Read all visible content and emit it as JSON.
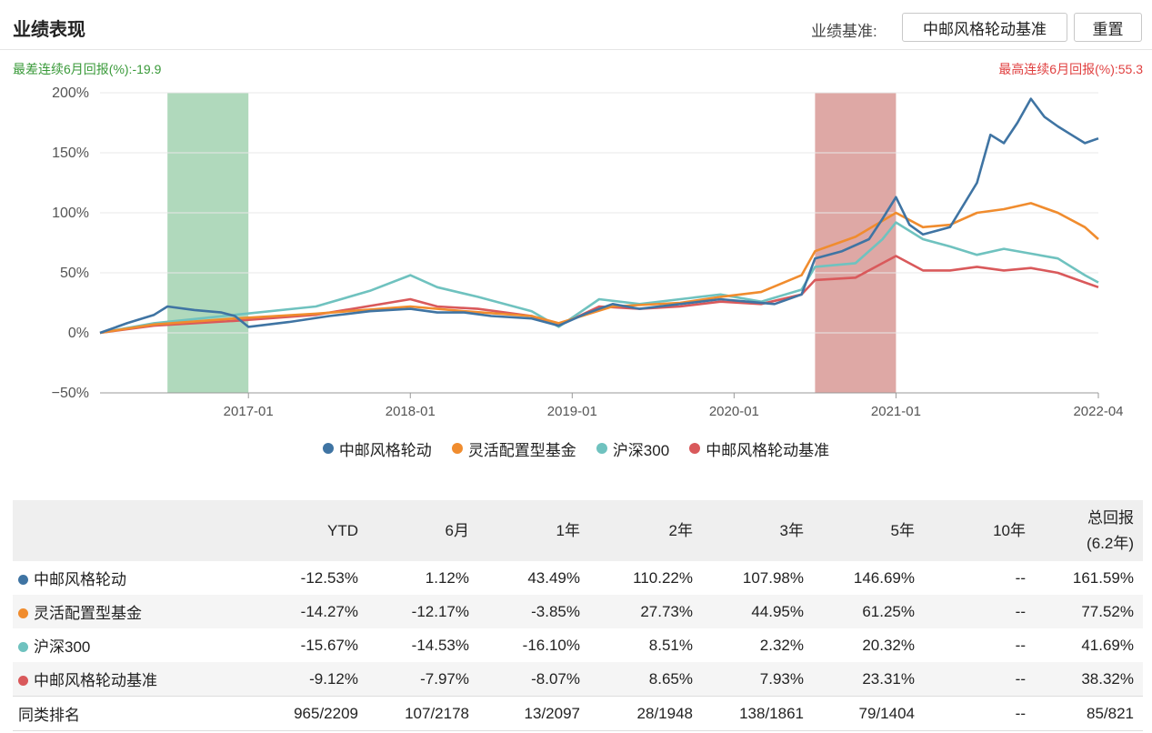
{
  "header": {
    "title": "业绩表现",
    "benchmark_label": "业绩基准:",
    "benchmark_value": "中邮风格轮动基准",
    "reset_label": "重置"
  },
  "annotations": {
    "worst_6m": "最差连续6月回报(%):-19.9",
    "best_6m": "最高连续6月回报(%):55.3"
  },
  "colors": {
    "fund": "#3f74a3",
    "category": "#f08c2e",
    "hs300": "#6fc2bf",
    "benchmark": "#d9595b",
    "worst_band": "#8fc9a0",
    "best_band": "#cc7a74",
    "positive": "#e03030",
    "negative": "#2e9a2e"
  },
  "chart_data": {
    "type": "line",
    "x_ticks": [
      "2017-01",
      "2018-01",
      "2019-01",
      "2020-01",
      "2021-01",
      "2022-04"
    ],
    "y_ticks": [
      "200%",
      "150%",
      "100%",
      "50%",
      "0%",
      "−50%"
    ],
    "ylim": [
      -50,
      200
    ],
    "grid": true,
    "legend_position": "bottom",
    "shaded_periods": [
      {
        "kind": "worst",
        "start": "2016-07",
        "end": "2017-01"
      },
      {
        "kind": "best",
        "start": "2020-07",
        "end": "2021-01"
      }
    ],
    "series": [
      {
        "name": "中邮风格轮动",
        "points": [
          [
            "2016-02",
            0
          ],
          [
            "2016-04",
            8
          ],
          [
            "2016-06",
            15
          ],
          [
            "2016-07",
            22
          ],
          [
            "2016-09",
            19
          ],
          [
            "2016-11",
            17
          ],
          [
            "2016-12",
            14
          ],
          [
            "2017-01",
            5
          ],
          [
            "2017-04",
            9
          ],
          [
            "2017-07",
            14
          ],
          [
            "2017-10",
            18
          ],
          [
            "2018-01",
            20
          ],
          [
            "2018-03",
            17
          ],
          [
            "2018-05",
            17
          ],
          [
            "2018-07",
            14
          ],
          [
            "2018-10",
            12
          ],
          [
            "2018-12",
            6
          ],
          [
            "2019-02",
            16
          ],
          [
            "2019-04",
            24
          ],
          [
            "2019-06",
            20
          ],
          [
            "2019-09",
            24
          ],
          [
            "2019-12",
            28
          ],
          [
            "2020-02",
            26
          ],
          [
            "2020-04",
            24
          ],
          [
            "2020-06",
            32
          ],
          [
            "2020-07",
            62
          ],
          [
            "2020-09",
            68
          ],
          [
            "2020-11",
            78
          ],
          [
            "2020-12",
            95
          ],
          [
            "2021-01",
            113
          ],
          [
            "2021-02",
            90
          ],
          [
            "2021-03",
            82
          ],
          [
            "2021-05",
            88
          ],
          [
            "2021-07",
            125
          ],
          [
            "2021-08",
            165
          ],
          [
            "2021-09",
            158
          ],
          [
            "2021-10",
            175
          ],
          [
            "2021-11",
            195
          ],
          [
            "2021-12",
            180
          ],
          [
            "2022-01",
            172
          ],
          [
            "2022-02",
            165
          ],
          [
            "2022-03",
            158
          ],
          [
            "2022-04",
            162
          ]
        ]
      },
      {
        "name": "灵活配置型基金",
        "points": [
          [
            "2016-02",
            0
          ],
          [
            "2016-06",
            7
          ],
          [
            "2016-12",
            12
          ],
          [
            "2017-06",
            16
          ],
          [
            "2018-01",
            22
          ],
          [
            "2018-05",
            18
          ],
          [
            "2018-10",
            14
          ],
          [
            "2018-12",
            8
          ],
          [
            "2019-04",
            22
          ],
          [
            "2019-09",
            25
          ],
          [
            "2019-12",
            30
          ],
          [
            "2020-03",
            34
          ],
          [
            "2020-06",
            48
          ],
          [
            "2020-07",
            68
          ],
          [
            "2020-10",
            80
          ],
          [
            "2021-01",
            100
          ],
          [
            "2021-03",
            88
          ],
          [
            "2021-05",
            90
          ],
          [
            "2021-07",
            100
          ],
          [
            "2021-09",
            103
          ],
          [
            "2021-11",
            108
          ],
          [
            "2022-01",
            100
          ],
          [
            "2022-03",
            88
          ],
          [
            "2022-04",
            78
          ]
        ]
      },
      {
        "name": "沪深300",
        "points": [
          [
            "2016-02",
            0
          ],
          [
            "2016-06",
            8
          ],
          [
            "2016-12",
            15
          ],
          [
            "2017-06",
            22
          ],
          [
            "2017-10",
            35
          ],
          [
            "2018-01",
            48
          ],
          [
            "2018-03",
            38
          ],
          [
            "2018-06",
            30
          ],
          [
            "2018-10",
            18
          ],
          [
            "2018-12",
            5
          ],
          [
            "2019-03",
            28
          ],
          [
            "2019-06",
            24
          ],
          [
            "2019-09",
            28
          ],
          [
            "2019-12",
            32
          ],
          [
            "2020-03",
            26
          ],
          [
            "2020-06",
            36
          ],
          [
            "2020-07",
            55
          ],
          [
            "2020-10",
            58
          ],
          [
            "2020-12",
            78
          ],
          [
            "2021-01",
            92
          ],
          [
            "2021-03",
            78
          ],
          [
            "2021-05",
            72
          ],
          [
            "2021-07",
            65
          ],
          [
            "2021-09",
            70
          ],
          [
            "2021-11",
            66
          ],
          [
            "2022-01",
            62
          ],
          [
            "2022-03",
            48
          ],
          [
            "2022-04",
            42
          ]
        ]
      },
      {
        "name": "中邮风格轮动基准",
        "points": [
          [
            "2016-02",
            0
          ],
          [
            "2016-06",
            6
          ],
          [
            "2016-12",
            10
          ],
          [
            "2017-06",
            15
          ],
          [
            "2018-01",
            28
          ],
          [
            "2018-03",
            22
          ],
          [
            "2018-06",
            20
          ],
          [
            "2018-10",
            14
          ],
          [
            "2018-12",
            6
          ],
          [
            "2019-03",
            22
          ],
          [
            "2019-06",
            20
          ],
          [
            "2019-09",
            22
          ],
          [
            "2019-12",
            26
          ],
          [
            "2020-03",
            24
          ],
          [
            "2020-06",
            32
          ],
          [
            "2020-07",
            44
          ],
          [
            "2020-10",
            46
          ],
          [
            "2020-12",
            58
          ],
          [
            "2021-01",
            64
          ],
          [
            "2021-03",
            52
          ],
          [
            "2021-05",
            52
          ],
          [
            "2021-07",
            55
          ],
          [
            "2021-09",
            52
          ],
          [
            "2021-11",
            54
          ],
          [
            "2022-01",
            50
          ],
          [
            "2022-03",
            42
          ],
          [
            "2022-04",
            38
          ]
        ]
      }
    ]
  },
  "table": {
    "headers": [
      "YTD",
      "6月",
      "1年",
      "2年",
      "3年",
      "5年",
      "10年",
      "总回报",
      "(6.2年)"
    ],
    "rows": [
      {
        "name": "中邮风格轮动",
        "color": "#3f74a3",
        "values": [
          "-12.53%",
          "1.12%",
          "43.49%",
          "110.22%",
          "107.98%",
          "146.69%",
          "--",
          "161.59%"
        ]
      },
      {
        "name": "灵活配置型基金",
        "color": "#f08c2e",
        "values": [
          "-14.27%",
          "-12.17%",
          "-3.85%",
          "27.73%",
          "44.95%",
          "61.25%",
          "--",
          "77.52%"
        ]
      },
      {
        "name": "沪深300",
        "color": "#6fc2bf",
        "values": [
          "-15.67%",
          "-14.53%",
          "-16.10%",
          "8.51%",
          "2.32%",
          "20.32%",
          "--",
          "41.69%"
        ]
      },
      {
        "name": "中邮风格轮动基准",
        "color": "#d9595b",
        "values": [
          "-9.12%",
          "-7.97%",
          "-8.07%",
          "8.65%",
          "7.93%",
          "23.31%",
          "--",
          "38.32%"
        ]
      }
    ],
    "rank": {
      "name": "同类排名",
      "values": [
        "965/2209",
        "107/2178",
        "13/2097",
        "28/1948",
        "138/1861",
        "79/1404",
        "--",
        "85/821"
      ]
    }
  }
}
